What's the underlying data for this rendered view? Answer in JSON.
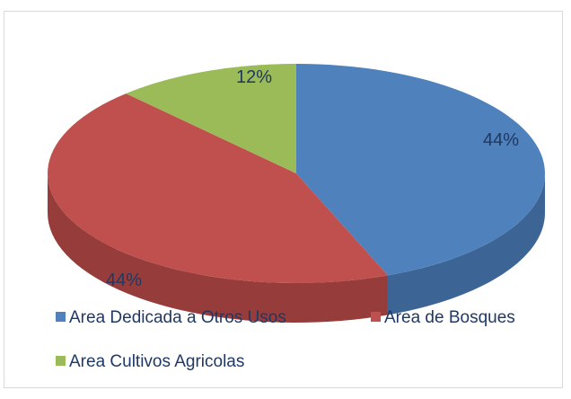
{
  "chart_data": {
    "type": "pie",
    "style": "3d",
    "title": "",
    "slices": [
      {
        "name": "Area Dedicada a Otros Usos",
        "value": 44,
        "label": "44%",
        "color": "#4f81bd",
        "side_color": "#3c6596"
      },
      {
        "name": "Area de Bosques",
        "value": 44,
        "label": "44%",
        "color": "#c0504d",
        "side_color": "#963c3a"
      },
      {
        "name": "Area Cultivos Agricolas",
        "value": 12,
        "label": "12%",
        "color": "#9bbb59",
        "side_color": "#77913f"
      }
    ],
    "legend_position": "bottom"
  }
}
